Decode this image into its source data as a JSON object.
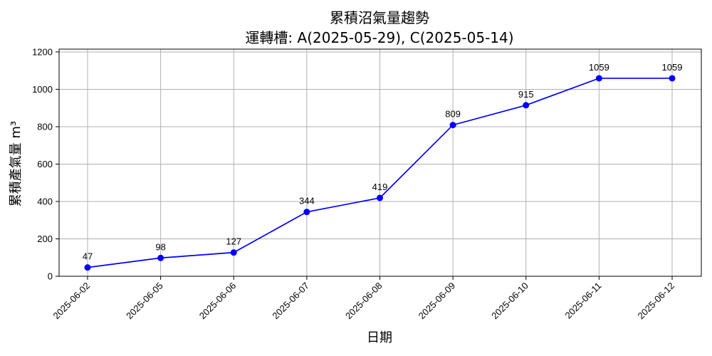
{
  "chart_data": {
    "type": "line",
    "title": "累積沼氣量趨勢",
    "subtitle": "運轉槽: A(2025-05-29), C(2025-05-14)",
    "xlabel": "日期",
    "ylabel": "累積產氣量 m³",
    "categories": [
      "2025-06-02",
      "2025-06-05",
      "2025-06-06",
      "2025-06-07",
      "2025-06-08",
      "2025-06-09",
      "2025-06-10",
      "2025-06-11",
      "2025-06-12"
    ],
    "values": [
      47,
      98,
      127,
      344,
      419,
      809,
      915,
      1059,
      1059
    ],
    "ylim": [
      0,
      1215
    ],
    "yticks": [
      0,
      200,
      400,
      600,
      800,
      1000,
      1200
    ],
    "grid": true,
    "line_color": "#0000ff",
    "marker_color": "#0000ff"
  }
}
